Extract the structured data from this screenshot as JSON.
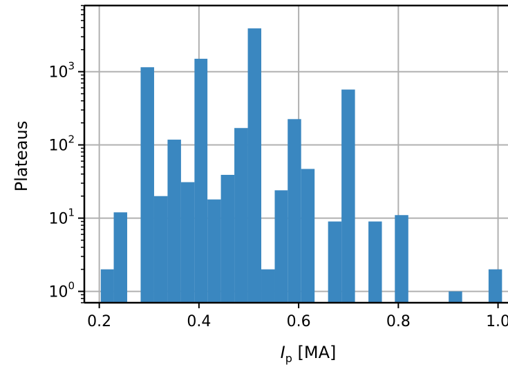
{
  "chart_data": {
    "type": "bar",
    "subtype": "histogram",
    "title": "",
    "xlabel_italic": "I",
    "xlabel_sub": "p",
    "xlabel_rest": " [MA]",
    "ylabel": "Plateaus",
    "y_scale": "log",
    "xlim": [
      0.17,
      1.02
    ],
    "ylim": [
      0.7,
      8000
    ],
    "grid": true,
    "legend": "none",
    "bar_color": "#3a87c0",
    "grid_color": "#b0b0b0",
    "x_ticks": [
      {
        "value": 0.2,
        "label": "0.2"
      },
      {
        "value": 0.4,
        "label": "0.4"
      },
      {
        "value": 0.6,
        "label": "0.6"
      },
      {
        "value": 0.8,
        "label": "0.8"
      },
      {
        "value": 1.0,
        "label": "1.0"
      }
    ],
    "y_ticks": [
      {
        "value": 1,
        "base": "10",
        "exp": "0"
      },
      {
        "value": 10,
        "base": "10",
        "exp": "1"
      },
      {
        "value": 100,
        "base": "10",
        "exp": "2"
      },
      {
        "value": 1000,
        "base": "10",
        "exp": "3"
      }
    ],
    "bins": [
      {
        "x0": 0.203,
        "x1": 0.229,
        "count": 2
      },
      {
        "x0": 0.229,
        "x1": 0.256,
        "count": 12
      },
      {
        "x0": 0.283,
        "x1": 0.31,
        "count": 1150
      },
      {
        "x0": 0.31,
        "x1": 0.337,
        "count": 20
      },
      {
        "x0": 0.337,
        "x1": 0.364,
        "count": 118
      },
      {
        "x0": 0.364,
        "x1": 0.391,
        "count": 31
      },
      {
        "x0": 0.391,
        "x1": 0.417,
        "count": 1500
      },
      {
        "x0": 0.417,
        "x1": 0.444,
        "count": 18
      },
      {
        "x0": 0.444,
        "x1": 0.471,
        "count": 39
      },
      {
        "x0": 0.471,
        "x1": 0.498,
        "count": 170
      },
      {
        "x0": 0.498,
        "x1": 0.525,
        "count": 3900
      },
      {
        "x0": 0.525,
        "x1": 0.552,
        "count": 2
      },
      {
        "x0": 0.552,
        "x1": 0.578,
        "count": 24
      },
      {
        "x0": 0.578,
        "x1": 0.605,
        "count": 225
      },
      {
        "x0": 0.605,
        "x1": 0.632,
        "count": 47
      },
      {
        "x0": 0.659,
        "x1": 0.686,
        "count": 9
      },
      {
        "x0": 0.686,
        "x1": 0.713,
        "count": 570
      },
      {
        "x0": 0.74,
        "x1": 0.767,
        "count": 9
      },
      {
        "x0": 0.793,
        "x1": 0.82,
        "count": 11
      },
      {
        "x0": 0.901,
        "x1": 0.928,
        "count": 1
      },
      {
        "x0": 0.981,
        "x1": 1.008,
        "count": 2
      }
    ]
  }
}
